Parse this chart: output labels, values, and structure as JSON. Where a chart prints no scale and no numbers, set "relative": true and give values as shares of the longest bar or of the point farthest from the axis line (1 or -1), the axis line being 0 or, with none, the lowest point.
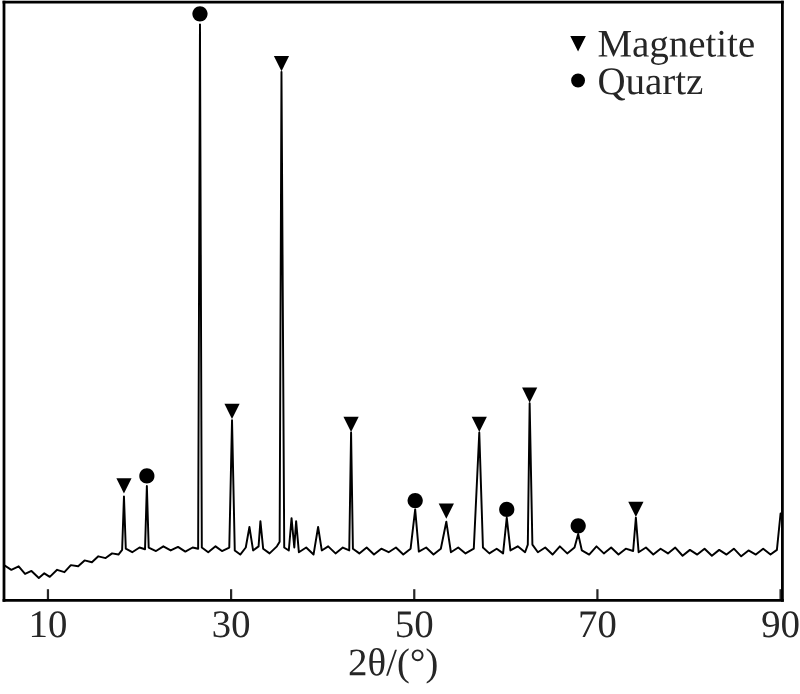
{
  "chart_data": {
    "type": "line",
    "xlabel": "2θ/(°)",
    "relative": true,
    "xlim": [
      5.2,
      90.2
    ],
    "xticks": [
      10,
      30,
      50,
      70,
      90
    ],
    "tick_labels": "x",
    "grid": false,
    "legend": "top right",
    "series": [
      {
        "color": "#000000",
        "marker": "none",
        "x": [
          5.2,
          6,
          6.8,
          7.5,
          8.2,
          9,
          9.6,
          10.2,
          11,
          11.8,
          12.5,
          13.3,
          14,
          14.8,
          15.5,
          16.3,
          17,
          17.7,
          18.1,
          18.3,
          18.5,
          19.2,
          20,
          20.6,
          20.8,
          21,
          21.8,
          22.6,
          23.4,
          24.2,
          25,
          25.8,
          26.4,
          26.6,
          26.8,
          27.5,
          28.3,
          29,
          29.8,
          30.1,
          30.4,
          31,
          31.6,
          32,
          32.4,
          33,
          33.2,
          33.5,
          34.2,
          35,
          35.3,
          35.5,
          35.8,
          36.3,
          36.6,
          36.9,
          37.1,
          37.4,
          38.2,
          39,
          39.5,
          39.9,
          40.6,
          41.4,
          42.2,
          42.9,
          43.1,
          43.3,
          44,
          44.8,
          45.6,
          46.4,
          47.2,
          48,
          48.8,
          49.6,
          50.1,
          50.5,
          51.3,
          52.1,
          52.9,
          53.5,
          54,
          54.8,
          55.6,
          56.5,
          57.1,
          57.5,
          58.2,
          59,
          59.7,
          60.1,
          60.5,
          61.3,
          62.1,
          62.4,
          62.6,
          62.9,
          63.5,
          64.3,
          65.1,
          65.9,
          66.7,
          67.5,
          67.9,
          68.3,
          69.1,
          69.9,
          70.7,
          71.5,
          72.3,
          73.1,
          73.9,
          74.2,
          74.5,
          75.3,
          76.1,
          76.9,
          77.7,
          78.5,
          79.3,
          80.1,
          80.9,
          81.7,
          82.5,
          83.3,
          84.1,
          84.9,
          85.7,
          86.5,
          87.3,
          88.1,
          88.9,
          89.6,
          90
        ],
        "values": [
          0.06,
          0.052,
          0.058,
          0.045,
          0.05,
          0.038,
          0.046,
          0.04,
          0.052,
          0.048,
          0.06,
          0.058,
          0.068,
          0.065,
          0.075,
          0.072,
          0.08,
          0.078,
          0.086,
          0.177,
          0.088,
          0.082,
          0.09,
          0.087,
          0.195,
          0.09,
          0.084,
          0.092,
          0.085,
          0.091,
          0.083,
          0.09,
          0.088,
          0.982,
          0.09,
          0.082,
          0.092,
          0.084,
          0.09,
          0.307,
          0.085,
          0.078,
          0.09,
          0.125,
          0.085,
          0.092,
          0.135,
          0.088,
          0.08,
          0.092,
          0.1,
          0.901,
          0.09,
          0.085,
          0.14,
          0.09,
          0.135,
          0.082,
          0.09,
          0.078,
          0.125,
          0.085,
          0.092,
          0.08,
          0.09,
          0.085,
          0.286,
          0.088,
          0.08,
          0.09,
          0.078,
          0.088,
          0.082,
          0.09,
          0.078,
          0.088,
          0.155,
          0.083,
          0.09,
          0.078,
          0.088,
          0.134,
          0.082,
          0.09,
          0.08,
          0.088,
          0.286,
          0.09,
          0.08,
          0.088,
          0.08,
          0.141,
          0.085,
          0.092,
          0.082,
          0.095,
          0.336,
          0.095,
          0.082,
          0.09,
          0.078,
          0.092,
          0.08,
          0.09,
          0.113,
          0.085,
          0.078,
          0.092,
          0.08,
          0.09,
          0.078,
          0.088,
          0.084,
          0.141,
          0.082,
          0.09,
          0.078,
          0.088,
          0.08,
          0.09,
          0.076,
          0.086,
          0.078,
          0.088,
          0.076,
          0.086,
          0.078,
          0.088,
          0.075,
          0.085,
          0.078,
          0.088,
          0.078,
          0.086,
          0.148
        ]
      },
      {
        "type": "scatter",
        "name": "Magnetite",
        "color": "#000000",
        "marker": "triangle",
        "x": [
          18.3,
          30.1,
          35.5,
          43.1,
          53.5,
          57.1,
          62.6,
          74.2
        ],
        "values": [
          0.195,
          0.322,
          0.915,
          0.3,
          0.152,
          0.3,
          0.35,
          0.155
        ]
      },
      {
        "type": "scatter",
        "name": "Quartz",
        "color": "#000000",
        "marker": "circle",
        "x": [
          20.8,
          26.6,
          50.1,
          60.1,
          67.9
        ],
        "values": [
          0.212,
          1.0,
          0.17,
          0.155,
          0.127
        ]
      }
    ]
  }
}
